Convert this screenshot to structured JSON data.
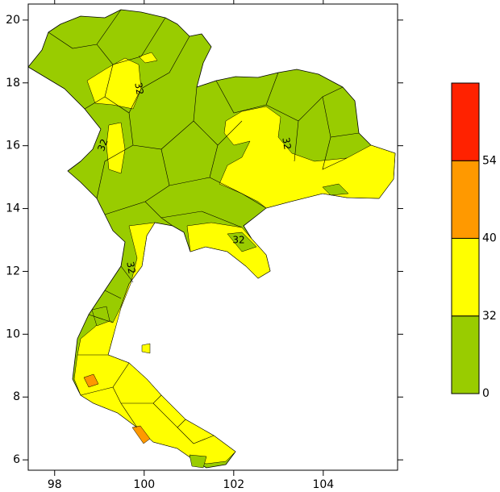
{
  "map": {
    "xlim": [
      97.41,
      105.66
    ],
    "ylim": [
      5.67,
      20.51
    ],
    "xticks": [
      98,
      100,
      102,
      104
    ],
    "yticks": [
      6,
      8,
      10,
      12,
      14,
      16,
      18,
      20
    ],
    "colorbar": {
      "levels": [
        0,
        32,
        40,
        54
      ],
      "colors": [
        "#99cc00",
        "#ffff00",
        "#ff9900",
        "#ff2200"
      ]
    },
    "contour_labels": [
      "32",
      "32",
      "32",
      "32",
      "32"
    ]
  }
}
